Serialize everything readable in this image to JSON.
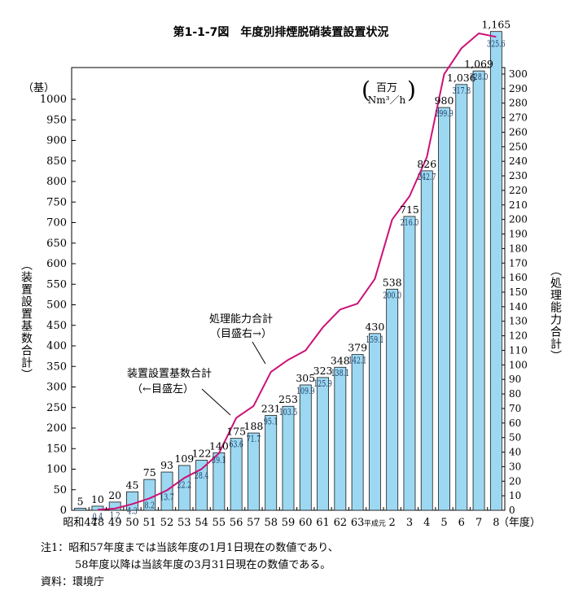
{
  "title": "第1-1-7図　年度別排煙脱硝装置設置状況",
  "chart_data": {
    "type": "bar",
    "categories": [
      "昭和47",
      "48",
      "49",
      "50",
      "51",
      "52",
      "53",
      "54",
      "55",
      "56",
      "57",
      "58",
      "59",
      "60",
      "61",
      "62",
      "63",
      "平成元",
      "2",
      "3",
      "4",
      "5",
      "6",
      "7",
      "8"
    ],
    "series": [
      {
        "name": "装置設置基数合計",
        "type": "bar",
        "axis": "left",
        "values": [
          5,
          10,
          20,
          45,
          75,
          93,
          109,
          122,
          140,
          175,
          188,
          231,
          253,
          305,
          323,
          348,
          379,
          430,
          538,
          715,
          826,
          980,
          1036,
          1069,
          1165
        ],
        "value_labels": [
          "5",
          "10",
          "20",
          "45",
          "75",
          "93",
          "109",
          "122",
          "140",
          "175",
          "188",
          "231",
          "253",
          "305",
          "323",
          "348",
          "379",
          "430",
          "538",
          "715",
          "826",
          "980",
          "1,036",
          "1,069",
          "1,165"
        ]
      },
      {
        "name": "処理能力合計",
        "type": "line",
        "axis": "right",
        "values": [
          null,
          0.4,
          1.2,
          4.3,
          8.2,
          13.7,
          22.2,
          28.4,
          39.1,
          63.6,
          71.7,
          95.1,
          103.5,
          109.9,
          125.9,
          138.1,
          142.1,
          159.1,
          200.0,
          216.0,
          242.7,
          299.9,
          317.8,
          328.0,
          325.6
        ],
        "value_labels": [
          "",
          "0.4",
          "1.2",
          "4.3",
          "8.2",
          "13.7",
          "22.2",
          "28.4",
          "39.1",
          "63.6",
          "71.7",
          "95.1",
          "103.5",
          "109.9",
          "125.9",
          "138.1",
          "142.1",
          "159.1",
          "200.0",
          "216.0",
          "242.7",
          "299.9",
          "317.8",
          "328.0",
          "325.6"
        ]
      }
    ],
    "y_left": {
      "unit": "（基）",
      "label": "（装置設置基数合計）",
      "ylim": [
        0,
        1000
      ],
      "ticks": [
        0,
        50,
        100,
        150,
        200,
        250,
        300,
        350,
        400,
        450,
        500,
        550,
        600,
        650,
        700,
        750,
        800,
        850,
        900,
        950,
        1000
      ]
    },
    "y_right": {
      "unit_line1": "百万",
      "unit_line2": "Nm³／h",
      "label": "（処理能力合計）",
      "ylim": [
        0,
        300
      ],
      "ticks": [
        0,
        10,
        20,
        30,
        40,
        50,
        60,
        70,
        80,
        90,
        100,
        110,
        120,
        130,
        140,
        150,
        160,
        170,
        180,
        190,
        200,
        210,
        220,
        230,
        240,
        250,
        260,
        270,
        280,
        290,
        300
      ]
    },
    "x_unit": "（年度）",
    "annotations": [
      {
        "line1": "処理能力合計",
        "line2": "（目盛右→）"
      },
      {
        "line1": "装置設置基数合計",
        "line2": "（←目盛左）"
      }
    ],
    "colors": {
      "bar_fill": "#9dd8f2",
      "bar_stroke": "#1a1a1a",
      "line": "#cc1177"
    }
  },
  "notes": {
    "note1_line1": "注1：昭和57年度までは当該年度の1月1日現在の数値であり、",
    "note1_line2": "58年度以降は当該年度の3月31日現在の数値である。",
    "source": "資料：環境庁"
  }
}
